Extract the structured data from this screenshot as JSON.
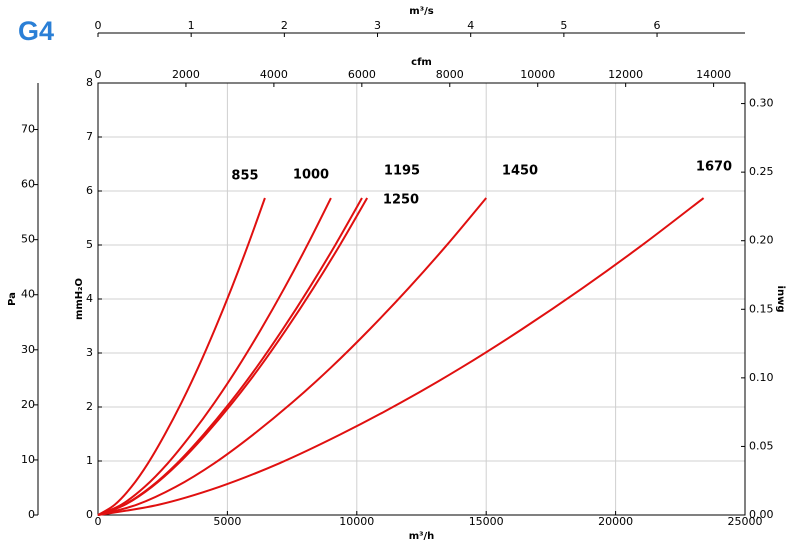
{
  "chart_data": {
    "type": "line",
    "title": "G4",
    "xlabel": "m³/h",
    "ylabel": "mmH₂O",
    "xlim": [
      0,
      25000
    ],
    "xticks": [
      0,
      5000,
      10000,
      15000,
      20000,
      25000
    ],
    "ylim": [
      0,
      8
    ],
    "yticks": [
      0,
      1,
      2,
      3,
      4,
      5,
      6,
      7,
      8
    ],
    "grid": true,
    "top_axes": [
      {
        "label": "cfm",
        "xlim": [
          0,
          14714
        ],
        "xticks": [
          0,
          2000,
          4000,
          6000,
          8000,
          10000,
          12000,
          14000
        ]
      },
      {
        "label": "m³/s",
        "xlim": [
          0,
          6.944
        ],
        "xticks": [
          0,
          1,
          2,
          3,
          4,
          5,
          6
        ]
      }
    ],
    "left_axis": {
      "label": "Pa",
      "ylim": [
        0,
        78.45
      ],
      "yticks": [
        0,
        10,
        20,
        30,
        40,
        50,
        60,
        70
      ]
    },
    "y2label": "inwg",
    "y2lim": [
      0,
      0.315
    ],
    "y2ticks": [
      {
        "value": 0,
        "label": "0.00"
      },
      {
        "value": 0.05,
        "label": "0.05"
      },
      {
        "value": 0.1,
        "label": "0.10"
      },
      {
        "value": 0.15,
        "label": "0.15"
      },
      {
        "value": 0.2,
        "label": "0.20"
      },
      {
        "value": 0.25,
        "label": "0.25"
      },
      {
        "value": 0.3,
        "label": "0.30"
      }
    ],
    "series": [
      {
        "name": "855",
        "color": "#e01010",
        "x": [
          0,
          645,
          1290,
          1935,
          2580,
          3225,
          3870,
          4515,
          5160,
          5805,
          6450
        ],
        "values": [
          0,
          0.19,
          0.52,
          0.96,
          1.49,
          2.08,
          2.73,
          3.44,
          4.2,
          5.01,
          5.87
        ]
      },
      {
        "name": "1000",
        "color": "#e01010",
        "x": [
          0,
          900,
          1800,
          2700,
          3600,
          4500,
          5400,
          6300,
          7200,
          8100,
          9000
        ],
        "values": [
          0,
          0.19,
          0.52,
          0.96,
          1.49,
          2.08,
          2.73,
          3.44,
          4.2,
          5.01,
          5.87
        ]
      },
      {
        "name": "1195",
        "color": "#e01010",
        "x": [
          0,
          1020,
          2040,
          3060,
          4080,
          5100,
          6120,
          7140,
          8160,
          9180,
          10200
        ],
        "values": [
          0,
          0.19,
          0.52,
          0.96,
          1.49,
          2.08,
          2.73,
          3.44,
          4.2,
          5.01,
          5.87
        ]
      },
      {
        "name": "1250",
        "color": "#e01010",
        "x": [
          0,
          1040,
          2080,
          3120,
          4160,
          5200,
          6240,
          7280,
          8320,
          9360,
          10400
        ],
        "values": [
          0,
          0.19,
          0.52,
          0.96,
          1.49,
          2.08,
          2.73,
          3.44,
          4.2,
          5.01,
          5.87
        ]
      },
      {
        "name": "1450",
        "color": "#e01010",
        "x": [
          0,
          1500,
          3000,
          4500,
          6000,
          7500,
          9000,
          10500,
          12000,
          13500,
          15000
        ],
        "values": [
          0,
          0.19,
          0.52,
          0.96,
          1.49,
          2.08,
          2.73,
          3.44,
          4.2,
          5.01,
          5.87
        ]
      },
      {
        "name": "1670",
        "color": "#e01010",
        "x": [
          0,
          2340,
          4680,
          7020,
          9360,
          11700,
          14040,
          16380,
          18720,
          21060,
          23400
        ],
        "values": [
          0,
          0.19,
          0.52,
          0.96,
          1.49,
          2.08,
          2.73,
          3.44,
          4.2,
          5.01,
          5.87
        ]
      }
    ]
  }
}
